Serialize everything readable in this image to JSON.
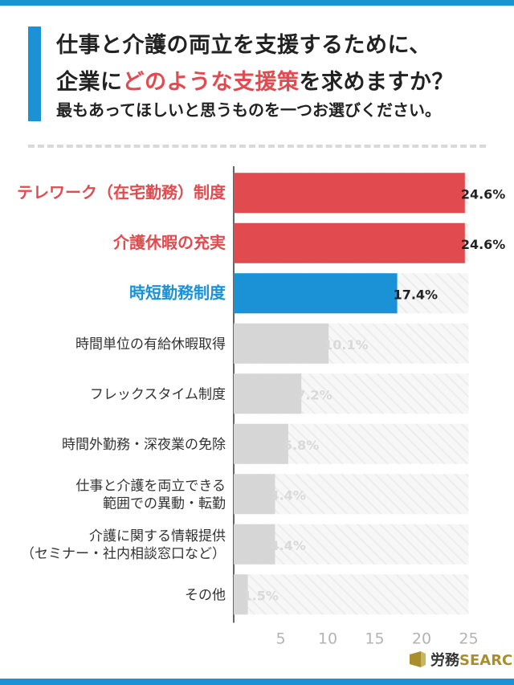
{
  "title": {
    "line1": "仕事と介護の両立を支援するために、",
    "line2_pre": "企業に",
    "line2_highlight": "どのような支援策",
    "line2_post": "を求めますか？",
    "line3": "最もあってほしいと思うものを一つお選びください。"
  },
  "colors": {
    "accent_blue": "#1b91d6",
    "highlight_red": "#e14b4f",
    "bar_gray": "#d6d6d6",
    "label_gray": "#333333"
  },
  "chart_data": {
    "type": "bar",
    "orientation": "horizontal",
    "title": "仕事と介護の両立を支援するために、企業にどのような支援策を求めますか？",
    "xlim": [
      0,
      25
    ],
    "xticks": [
      5,
      10,
      15,
      20,
      25
    ],
    "unit": "%",
    "categories": [
      [
        "テレワーク（在宅勤務）制度"
      ],
      [
        "介護休暇の充実"
      ],
      [
        "時短勤務制度"
      ],
      [
        "時間単位の有給休暇取得"
      ],
      [
        "フレックスタイム制度"
      ],
      [
        "時間外勤務・深夜業の免除"
      ],
      [
        "仕事と介護を両立できる",
        "範囲での異動・転勤"
      ],
      [
        "介護に関する情報提供",
        "（セミナー・社内相談窓口など）"
      ],
      [
        "その他"
      ]
    ],
    "values": [
      24.6,
      24.6,
      17.4,
      10.1,
      7.2,
      5.8,
      4.4,
      4.4,
      1.5
    ],
    "value_labels": [
      "24.6%",
      "24.6%",
      "17.4%",
      "10.1%",
      "7.2%",
      "5.8%",
      "4.4%",
      "4.4%",
      "1.5%"
    ],
    "highlight": [
      "red",
      "red",
      "blue",
      "none",
      "none",
      "none",
      "none",
      "none",
      "none"
    ]
  },
  "logo": {
    "jp": "労務",
    "en": "SEARCH"
  }
}
